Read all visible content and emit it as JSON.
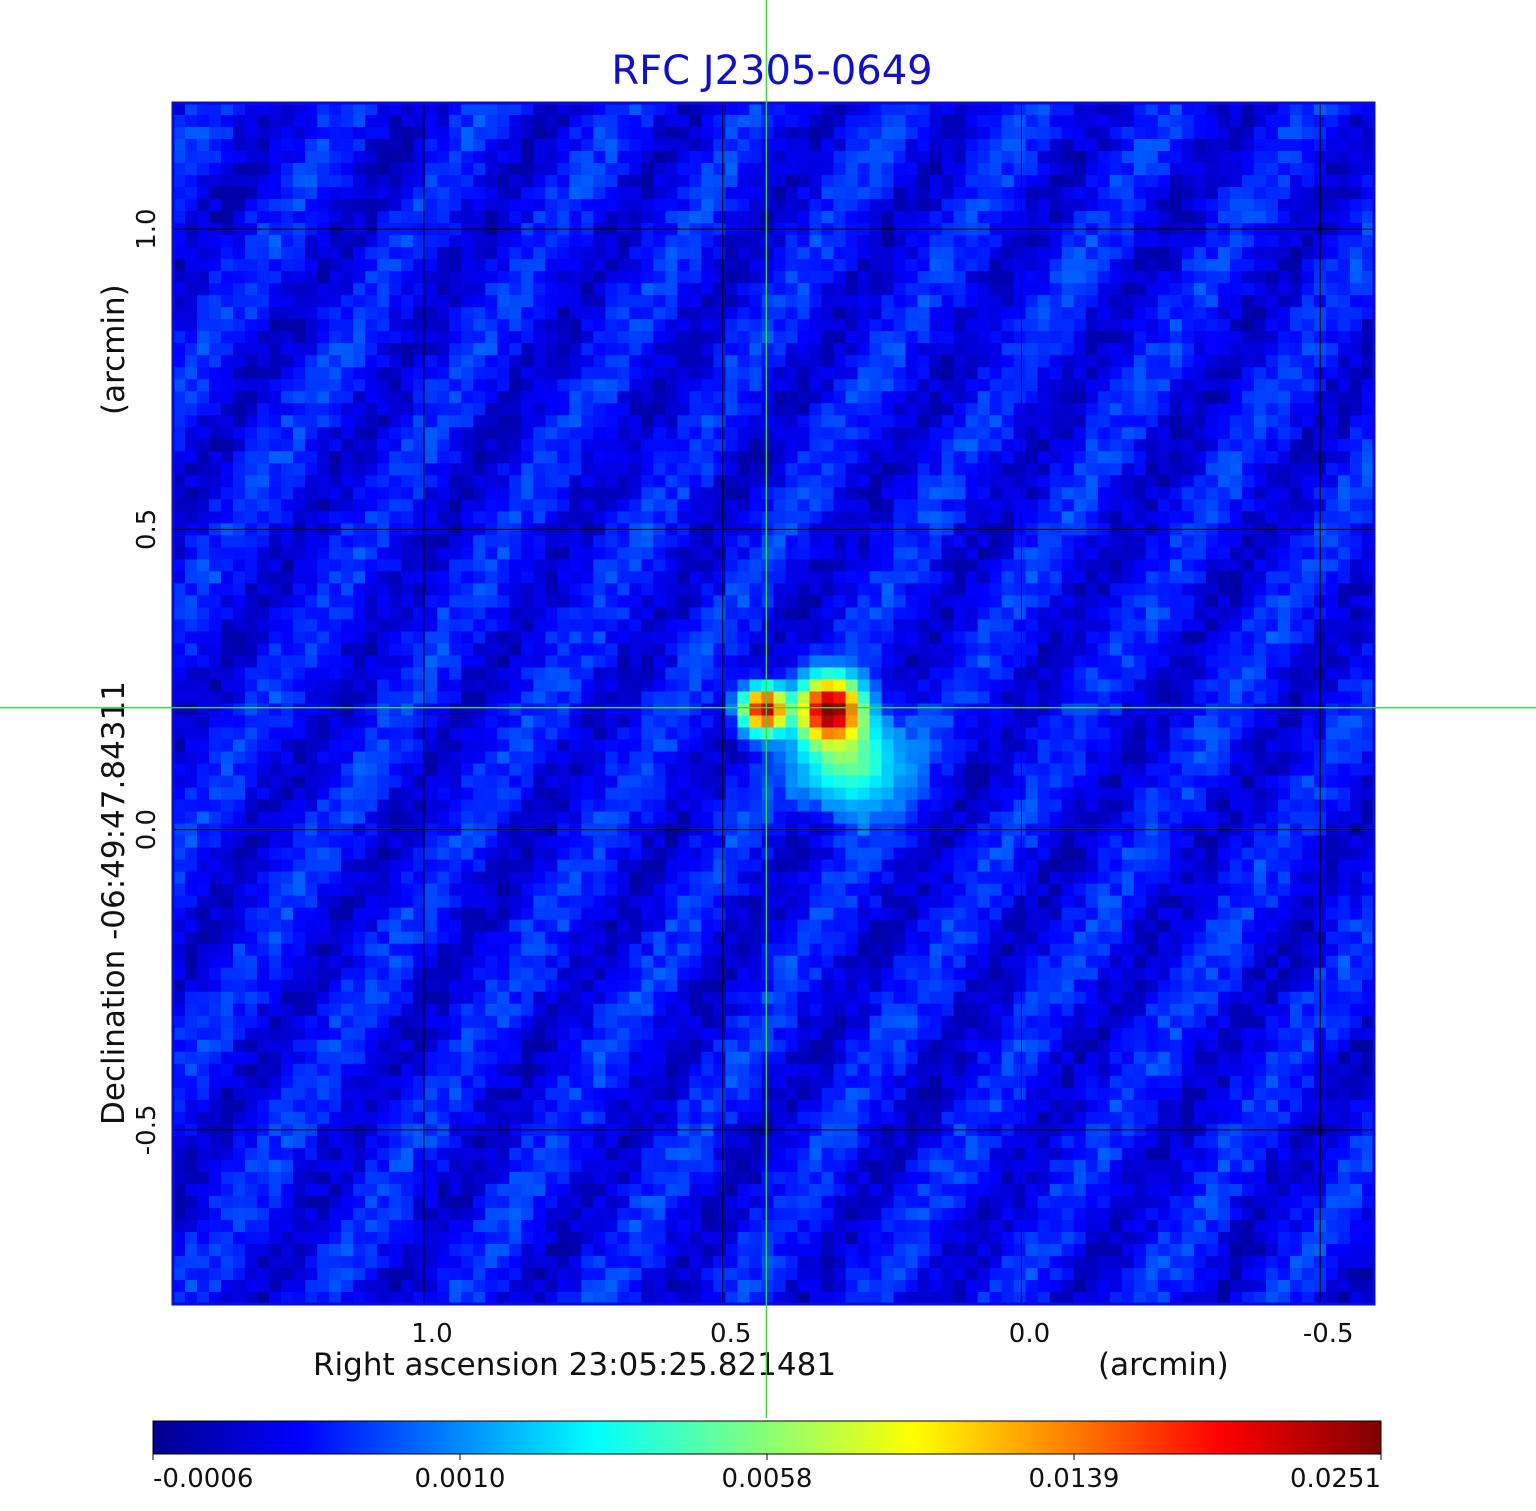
{
  "chart_data": {
    "type": "heatmap",
    "title": "RFC J2305-0649",
    "xlabel": "Right ascension  23:05:25.821481",
    "xlabel_unit": "(arcmin)",
    "ylabel": "Declination  -06:49:47.84311",
    "ylabel_unit": "(arcmin)",
    "xlim": [
      1.42,
      -0.59
    ],
    "ylim": [
      -0.79,
      1.21
    ],
    "x_direction": "decreasing to the right",
    "x_ticks": [
      {
        "value": 1.0,
        "label": "1.0"
      },
      {
        "value": 0.5,
        "label": "0.5"
      },
      {
        "value": 0.0,
        "label": "0.0"
      },
      {
        "value": -0.5,
        "label": "-0.5"
      }
    ],
    "y_ticks": [
      {
        "value": 1.0,
        "label": "1.0"
      },
      {
        "value": 0.5,
        "label": "0.5"
      },
      {
        "value": 0.0,
        "label": "0.0"
      },
      {
        "value": -0.5,
        "label": "-0.5"
      }
    ],
    "grid": true,
    "grid_color": "#000000",
    "crosshair": {
      "x": 0.427,
      "y": 0.203,
      "color": "#33dd33"
    },
    "colormap": "jet",
    "colorbar": {
      "position": "bottom",
      "ticks": [
        {
          "value": -0.0006,
          "label": "-0.0006"
        },
        {
          "value": 0.001,
          "label": "0.0010"
        },
        {
          "value": 0.0058,
          "label": "0.0058"
        },
        {
          "value": 0.0139,
          "label": "0.0139"
        },
        {
          "value": 0.0251,
          "label": "0.0251"
        }
      ]
    },
    "background_level": 0.0002,
    "sources": [
      {
        "x": 0.43,
        "y": 0.2,
        "peak": 0.022,
        "sigma_arcmin": 0.022
      },
      {
        "x": 0.32,
        "y": 0.2,
        "peak": 0.0251,
        "sigma_arcmin": 0.03
      },
      {
        "x": 0.29,
        "y": 0.12,
        "peak": 0.006,
        "sigma_arcmin": 0.05
      }
    ]
  }
}
